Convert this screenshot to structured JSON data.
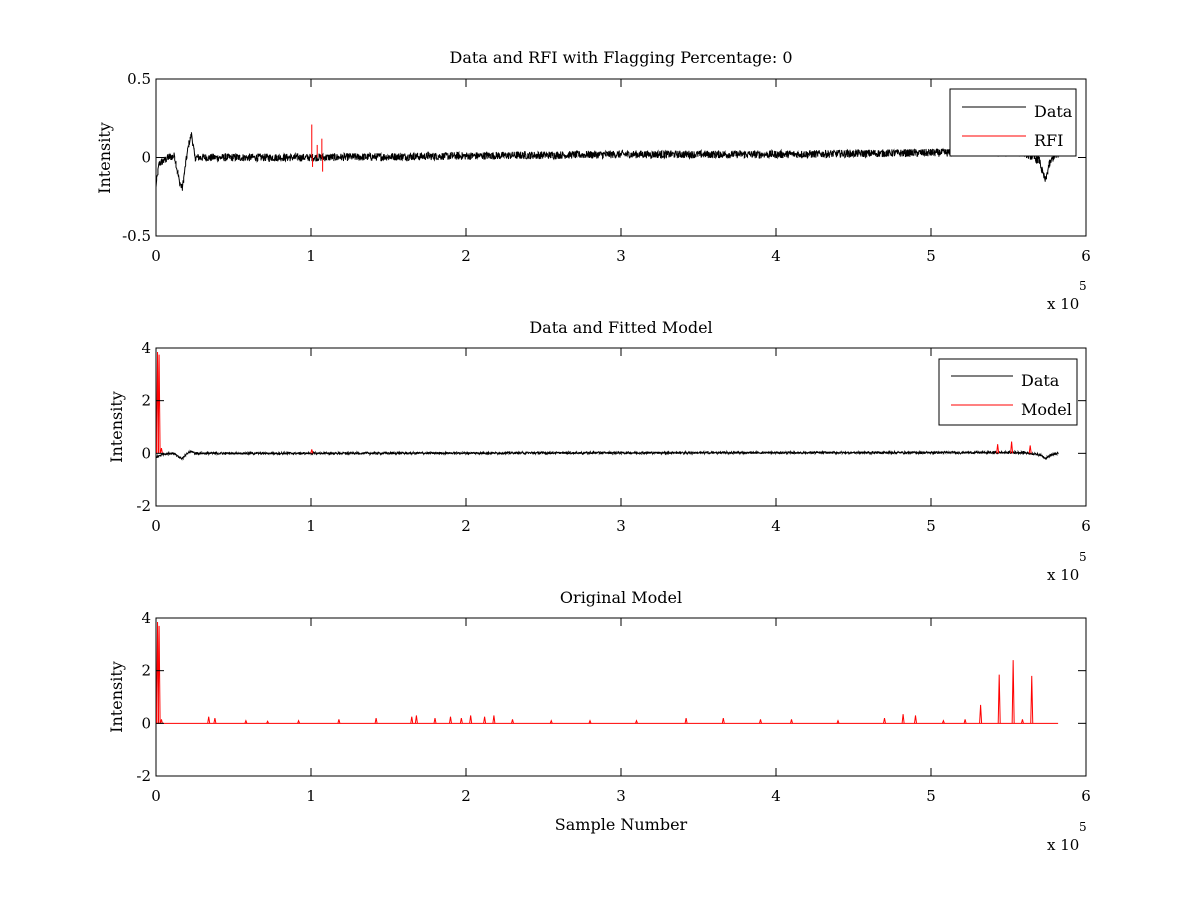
{
  "colors": {
    "data": "#000000",
    "rfi": "#ff0000",
    "model": "#ff0000",
    "background": "#ffffff"
  },
  "chart_data": [
    {
      "type": "line",
      "title": "Data and RFI with Flagging Percentage: 0",
      "xlabel": "",
      "ylabel": "Intensity",
      "xlim": [
        0,
        600000
      ],
      "ylim": [
        -0.5,
        0.5
      ],
      "xticks": [
        0,
        100000,
        200000,
        300000,
        400000,
        500000,
        600000
      ],
      "xtick_labels": [
        "0",
        "1",
        "2",
        "3",
        "4",
        "5",
        "6"
      ],
      "yticks": [
        -0.5,
        0,
        0.5
      ],
      "ytick_labels": [
        "-0.5",
        "0",
        "0.5"
      ],
      "x_multiplier_text": "x 10",
      "x_multiplier_exp": "5",
      "legend": {
        "position": "top-right",
        "entries": [
          "Data",
          "RFI"
        ]
      },
      "series": [
        {
          "name": "Data",
          "color": "#000000",
          "x": [
            0,
            2000,
            5000,
            8000,
            12000,
            15000,
            17000,
            19000,
            21000,
            23000,
            25000,
            100000,
            200000,
            300000,
            400000,
            500000,
            560000,
            570000,
            572000,
            574000,
            576000,
            580000,
            582000
          ],
          "y": [
            -0.18,
            -0.04,
            -0.02,
            0.0,
            0.01,
            -0.15,
            -0.2,
            -0.05,
            0.08,
            0.15,
            0.0,
            0.0,
            0.01,
            0.02,
            0.02,
            0.03,
            0.03,
            -0.02,
            -0.1,
            -0.15,
            -0.05,
            0.02,
            0.0
          ],
          "noise_amplitude": 0.025
        },
        {
          "name": "RFI",
          "color": "#ff0000",
          "spikes": [
            {
              "x": 100500,
              "y": 0.21
            },
            {
              "x": 101000,
              "y": -0.06
            },
            {
              "x": 104000,
              "y": 0.08
            },
            {
              "x": 107000,
              "y": 0.12
            },
            {
              "x": 107500,
              "y": -0.09
            }
          ]
        }
      ]
    },
    {
      "type": "line",
      "title": "Data and Fitted Model",
      "xlabel": "",
      "ylabel": "Intensity",
      "xlim": [
        0,
        600000
      ],
      "ylim": [
        -2,
        4
      ],
      "xticks": [
        0,
        100000,
        200000,
        300000,
        400000,
        500000,
        600000
      ],
      "xtick_labels": [
        "0",
        "1",
        "2",
        "3",
        "4",
        "5",
        "6"
      ],
      "yticks": [
        -2,
        0,
        2,
        4
      ],
      "ytick_labels": [
        "-2",
        "0",
        "2",
        "4"
      ],
      "x_multiplier_text": "x 10",
      "x_multiplier_exp": "5",
      "legend": {
        "position": "top-right",
        "entries": [
          "Data",
          "Model"
        ]
      },
      "series": [
        {
          "name": "Data",
          "color": "#000000",
          "x": [
            0,
            5000,
            12000,
            15000,
            17000,
            19000,
            21000,
            23000,
            25000,
            100000,
            300000,
            560000,
            570000,
            574000,
            578000,
            582000
          ],
          "y": [
            -0.15,
            -0.02,
            0.0,
            -0.15,
            -0.2,
            -0.08,
            0.03,
            0.08,
            0.0,
            0.0,
            0.02,
            0.03,
            -0.05,
            -0.18,
            -0.05,
            0.0
          ],
          "noise_amplitude": 0.04
        },
        {
          "name": "Model",
          "color": "#ff0000",
          "peaks": [
            {
              "x": 1000,
              "y": 3.85
            },
            {
              "x": 2000,
              "y": 3.75
            },
            {
              "x": 3500,
              "y": 0.2
            },
            {
              "x": 100500,
              "y": 0.15
            },
            {
              "x": 543000,
              "y": 0.35
            },
            {
              "x": 552000,
              "y": 0.45
            },
            {
              "x": 564000,
              "y": 0.3
            }
          ]
        }
      ]
    },
    {
      "type": "line",
      "title": "Original Model",
      "xlabel": "Sample Number",
      "ylabel": "Intensity",
      "xlim": [
        0,
        600000
      ],
      "ylim": [
        -2,
        4
      ],
      "xticks": [
        0,
        100000,
        200000,
        300000,
        400000,
        500000,
        600000
      ],
      "xtick_labels": [
        "0",
        "1",
        "2",
        "3",
        "4",
        "5",
        "6"
      ],
      "yticks": [
        -2,
        0,
        2,
        4
      ],
      "ytick_labels": [
        "-2",
        "0",
        "2",
        "4"
      ],
      "x_multiplier_text": "x 10",
      "x_multiplier_exp": "5",
      "series": [
        {
          "name": "Original Model",
          "color": "#ff0000",
          "x_end": 582000,
          "peaks": [
            {
              "x": 1000,
              "y": 3.85
            },
            {
              "x": 2000,
              "y": 3.7
            },
            {
              "x": 3500,
              "y": 0.15
            },
            {
              "x": 34000,
              "y": 0.25
            },
            {
              "x": 38000,
              "y": 0.2
            },
            {
              "x": 58000,
              "y": 0.1
            },
            {
              "x": 72000,
              "y": 0.08
            },
            {
              "x": 92000,
              "y": 0.1
            },
            {
              "x": 118000,
              "y": 0.15
            },
            {
              "x": 142000,
              "y": 0.2
            },
            {
              "x": 165000,
              "y": 0.25
            },
            {
              "x": 168000,
              "y": 0.3
            },
            {
              "x": 180000,
              "y": 0.2
            },
            {
              "x": 190000,
              "y": 0.25
            },
            {
              "x": 197000,
              "y": 0.2
            },
            {
              "x": 203000,
              "y": 0.3
            },
            {
              "x": 212000,
              "y": 0.25
            },
            {
              "x": 218000,
              "y": 0.3
            },
            {
              "x": 230000,
              "y": 0.15
            },
            {
              "x": 255000,
              "y": 0.1
            },
            {
              "x": 280000,
              "y": 0.1
            },
            {
              "x": 310000,
              "y": 0.1
            },
            {
              "x": 342000,
              "y": 0.2
            },
            {
              "x": 366000,
              "y": 0.2
            },
            {
              "x": 390000,
              "y": 0.15
            },
            {
              "x": 410000,
              "y": 0.15
            },
            {
              "x": 440000,
              "y": 0.1
            },
            {
              "x": 470000,
              "y": 0.2
            },
            {
              "x": 482000,
              "y": 0.35
            },
            {
              "x": 490000,
              "y": 0.3
            },
            {
              "x": 508000,
              "y": 0.1
            },
            {
              "x": 522000,
              "y": 0.15
            },
            {
              "x": 532000,
              "y": 0.7
            },
            {
              "x": 544000,
              "y": 1.85
            },
            {
              "x": 553000,
              "y": 2.4
            },
            {
              "x": 559000,
              "y": 0.15
            },
            {
              "x": 565000,
              "y": 1.8
            }
          ]
        }
      ]
    }
  ]
}
